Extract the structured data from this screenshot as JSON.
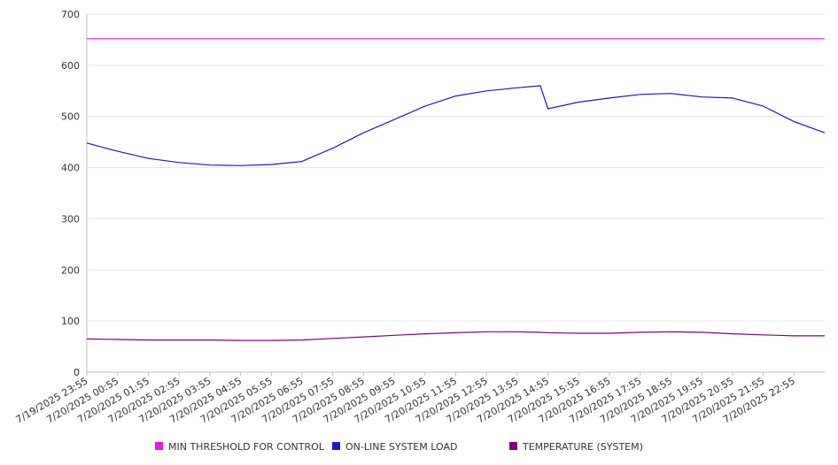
{
  "chart_data": {
    "type": "line",
    "title": "",
    "xlabel": "",
    "ylabel": "",
    "ylim": [
      0,
      700
    ],
    "yticks": [
      0,
      100,
      200,
      300,
      400,
      500,
      600,
      700
    ],
    "grid": true,
    "legend_position": "bottom",
    "x_start": "7/19/2025 23:55",
    "x_end": "7/20/2025 23:55",
    "x_tick_labels": [
      "7/19/2025 23:55",
      "7/20/2025 00:55",
      "7/20/2025 01:55",
      "7/20/2025 02:55",
      "7/20/2025 03:55",
      "7/20/2025 04:55",
      "7/20/2025 05:55",
      "7/20/2025 06:55",
      "7/20/2025 07:55",
      "7/20/2025 08:55",
      "7/20/2025 09:55",
      "7/20/2025 10:55",
      "7/20/2025 11:55",
      "7/20/2025 12:55",
      "7/20/2025 13:55",
      "7/20/2025 14:55",
      "7/20/2025 15:55",
      "7/20/2025 16:55",
      "7/20/2025 17:55",
      "7/20/2025 18:55",
      "7/20/2025 19:55",
      "7/20/2025 20:55",
      "7/20/2025 21:55",
      "7/20/2025 22:55"
    ],
    "x": [
      "7/19/2025 23:55",
      "7/20/2025 00:55",
      "7/20/2025 01:55",
      "7/20/2025 02:55",
      "7/20/2025 03:55",
      "7/20/2025 04:55",
      "7/20/2025 05:55",
      "7/20/2025 06:55",
      "7/20/2025 07:55",
      "7/20/2025 08:55",
      "7/20/2025 09:55",
      "7/20/2025 10:55",
      "7/20/2025 11:55",
      "7/20/2025 12:55",
      "7/20/2025 13:55",
      "7/20/2025 14:40",
      "7/20/2025 14:55",
      "7/20/2025 15:55",
      "7/20/2025 16:55",
      "7/20/2025 17:55",
      "7/20/2025 18:55",
      "7/20/2025 19:55",
      "7/20/2025 20:55",
      "7/20/2025 21:55",
      "7/20/2025 22:55",
      "7/20/2025 23:55"
    ],
    "series": [
      {
        "name": "MIN THRESHOLD FOR CONTROL",
        "color": "#e619e6",
        "values": [
          652,
          652,
          652,
          652,
          652,
          652,
          652,
          652,
          652,
          652,
          652,
          652,
          652,
          652,
          652,
          652,
          652,
          652,
          652,
          652,
          652,
          652,
          652,
          652,
          652,
          652
        ]
      },
      {
        "name": "ON-LINE SYSTEM LOAD",
        "color": "#1a1acc",
        "values": [
          448,
          432,
          418,
          410,
          405,
          404,
          406,
          412,
          438,
          468,
          494,
          520,
          540,
          550,
          556,
          560,
          515,
          528,
          536,
          543,
          545,
          538,
          536,
          520,
          490,
          468
        ]
      },
      {
        "name": "TEMPERATURE (SYSTEM)",
        "color": "#800080",
        "values": [
          65,
          64,
          63,
          63,
          63,
          62,
          62,
          63,
          66,
          69,
          72,
          75,
          77,
          79,
          79,
          78,
          77,
          76,
          76,
          78,
          79,
          78,
          75,
          73,
          71,
          71
        ]
      }
    ]
  }
}
